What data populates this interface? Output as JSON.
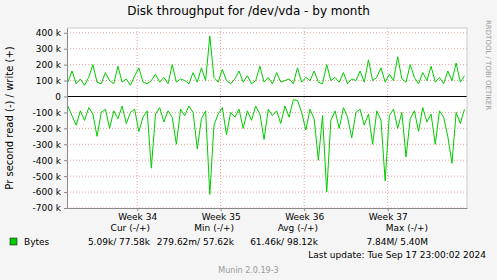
{
  "chart_data": {
    "type": "line",
    "title": "Disk throughput for /dev/vda - by month",
    "y_label": "Pr second read (-) / write (+)",
    "watermark": "RRDTOOL / TOBI OETIKER",
    "grid": true,
    "xlim": [
      33.16,
      37.95
    ],
    "xticks": [
      {
        "value": 34,
        "label": "Week 34"
      },
      {
        "value": 35,
        "label": "Week 35"
      },
      {
        "value": 36,
        "label": "Week 36"
      },
      {
        "value": 37,
        "label": "Week 37"
      }
    ],
    "ylim": [
      -700000,
      430000
    ],
    "yticks": [
      {
        "value": 400000,
        "label": "400 k"
      },
      {
        "value": 300000,
        "label": "300 k"
      },
      {
        "value": 200000,
        "label": "200 k"
      },
      {
        "value": 100000,
        "label": "100 k"
      },
      0,
      {
        "value": -100000,
        "label": "-100 k"
      },
      {
        "value": -200000,
        "label": "-200 k"
      },
      {
        "value": -300000,
        "label": "-300 k"
      },
      {
        "value": -400000,
        "label": "-400 k"
      },
      {
        "value": -500000,
        "label": "-500 k"
      },
      {
        "value": -600000,
        "label": "-600 k"
      },
      {
        "value": -700000,
        "label": "-700 k"
      }
    ],
    "x": [
      33.17,
      33.22,
      33.27,
      33.32,
      33.37,
      33.42,
      33.47,
      33.52,
      33.57,
      33.62,
      33.67,
      33.72,
      33.77,
      33.82,
      33.87,
      33.92,
      33.97,
      34.02,
      34.07,
      34.12,
      34.17,
      34.22,
      34.27,
      34.32,
      34.37,
      34.42,
      34.47,
      34.52,
      34.57,
      34.62,
      34.67,
      34.72,
      34.77,
      34.82,
      34.87,
      34.92,
      34.97,
      35.02,
      35.07,
      35.12,
      35.17,
      35.22,
      35.27,
      35.32,
      35.37,
      35.42,
      35.47,
      35.52,
      35.57,
      35.62,
      35.67,
      35.72,
      35.77,
      35.82,
      35.87,
      35.92,
      35.97,
      36.02,
      36.07,
      36.12,
      36.17,
      36.22,
      36.27,
      36.32,
      36.37,
      36.42,
      36.47,
      36.52,
      36.57,
      36.62,
      36.67,
      36.72,
      36.77,
      36.82,
      36.87,
      36.92,
      36.97,
      37.02,
      37.07,
      37.12,
      37.17,
      37.22,
      37.27,
      37.32,
      37.37,
      37.42,
      37.47,
      37.52,
      37.57,
      37.62,
      37.67,
      37.72,
      37.77,
      37.82,
      37.87,
      37.92
    ],
    "series": [
      {
        "name": "Bytes",
        "color": "#00cc00",
        "values": [
          90000,
          160000,
          80000,
          110000,
          70000,
          120000,
          200000,
          90000,
          80000,
          150000,
          100000,
          80000,
          190000,
          90000,
          110000,
          70000,
          130000,
          180000,
          90000,
          80000,
          100000,
          140000,
          90000,
          120000,
          80000,
          200000,
          90000,
          110000,
          100000,
          80000,
          150000,
          90000,
          180000,
          100000,
          380000,
          120000,
          90000,
          170000,
          100000,
          80000,
          110000,
          160000,
          90000,
          130000,
          80000,
          100000,
          190000,
          90000,
          120000,
          80000,
          150000,
          90000,
          100000,
          110000,
          80000,
          180000,
          90000,
          120000,
          100000,
          160000,
          90000,
          80000,
          200000,
          100000,
          120000,
          90000,
          150000,
          80000,
          110000,
          100000,
          160000,
          90000,
          230000,
          100000,
          120000,
          180000,
          90000,
          140000,
          100000,
          250000,
          110000,
          90000,
          200000,
          120000,
          80000,
          150000,
          100000,
          190000,
          90000,
          120000,
          80000,
          160000,
          100000,
          210000,
          90000,
          130000
        ]
      },
      {
        "color": "#00cc00",
        "values": [
          -60000,
          -120000,
          -180000,
          -90000,
          -150000,
          -70000,
          -110000,
          -250000,
          -100000,
          -80000,
          -200000,
          -90000,
          -140000,
          -60000,
          -170000,
          -100000,
          -80000,
          -220000,
          -130000,
          -90000,
          -450000,
          -110000,
          -70000,
          -160000,
          -90000,
          -130000,
          -300000,
          -80000,
          -120000,
          -60000,
          -100000,
          -330000,
          -140000,
          -90000,
          -615000,
          -180000,
          -110000,
          -70000,
          -240000,
          -100000,
          -130000,
          -80000,
          -200000,
          -90000,
          -150000,
          -60000,
          -110000,
          -270000,
          -80000,
          -120000,
          -90000,
          -170000,
          -60000,
          -130000,
          -20000,
          -25000,
          -100000,
          -210000,
          -80000,
          -140000,
          -400000,
          -120000,
          -600000,
          -150000,
          -90000,
          -200000,
          -70000,
          -130000,
          -260000,
          -100000,
          -80000,
          -180000,
          -110000,
          -300000,
          -90000,
          -150000,
          -530000,
          -120000,
          -80000,
          -200000,
          -100000,
          -380000,
          -140000,
          -90000,
          -220000,
          -70000,
          -160000,
          -110000,
          -300000,
          -90000,
          -130000,
          -250000,
          -420000,
          -100000,
          -170000,
          -80000
        ]
      }
    ],
    "legend_table": {
      "headers": [
        "Cur (-/+)",
        "Min (-/+)",
        "Avg (-/+)",
        "Max (-/+)"
      ],
      "cells": [
        "5.09k/ 77.58k",
        "279.62m/ 57.62k",
        "61.46k/ 98.12k",
        "7.84M/ 5.40M"
      ]
    },
    "last_update": "Last update: Tue Sep 17 23:00:02 2024",
    "footer": "Munin 2.0.19-3"
  }
}
